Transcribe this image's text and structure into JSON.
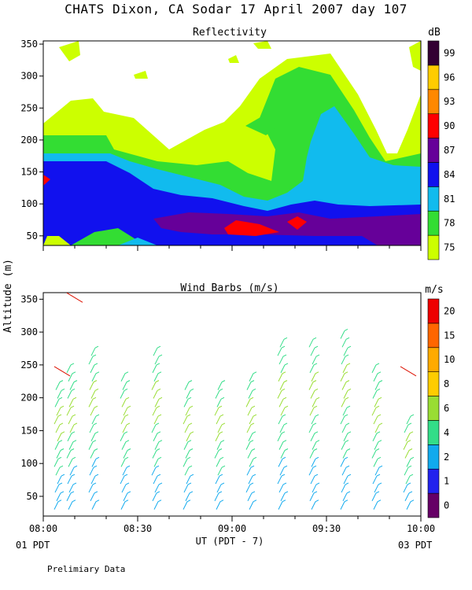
{
  "title": "CHATS Dixon, CA  Sodar  17 April 2007  day 107",
  "footer_note": "Prelimiary Data",
  "date_left": "01 PDT",
  "date_right": "03 PDT",
  "chart_data": [
    {
      "type": "heatmap",
      "title": "Reflectivity",
      "ylabel": "",
      "xlabel": "UT  (PDT - 7)",
      "xlim": [
        "08:00",
        "10:00"
      ],
      "ylim": [
        35,
        355
      ],
      "yticks": [
        50,
        100,
        150,
        200,
        250,
        300,
        350
      ],
      "xticks": [
        "08:00",
        "08:30",
        "09:00",
        "09:30",
        "10:00"
      ],
      "colorbar": {
        "unit": "dB",
        "levels": [
          {
            "label": "75",
            "color": "#ccff00"
          },
          {
            "label": "78",
            "color": "#33dd33"
          },
          {
            "label": "81",
            "color": "#11bbee"
          },
          {
            "label": "84",
            "color": "#1111ee"
          },
          {
            "label": "87",
            "color": "#660099"
          },
          {
            "label": "90",
            "color": "#ff0000"
          },
          {
            "label": "93",
            "color": "#ff8800"
          },
          {
            "label": "96",
            "color": "#ffcc00"
          },
          {
            "label": "99",
            "color": "#330033"
          }
        ]
      }
    },
    {
      "type": "scatter",
      "title": "Wind Barbs (m/s)",
      "ylabel": "Altitude (m)",
      "xlabel": "UT  (PDT - 7)",
      "xlim": [
        "08:00",
        "10:00"
      ],
      "ylim": [
        20,
        360
      ],
      "yticks": [
        50,
        100,
        150,
        200,
        250,
        300,
        350
      ],
      "xticks": [
        "08:00",
        "08:30",
        "09:00",
        "09:30",
        "10:00"
      ],
      "colorbar": {
        "unit": "m/s",
        "levels": [
          {
            "label": "0",
            "color": "#660066"
          },
          {
            "label": "1",
            "color": "#2222ee"
          },
          {
            "label": "2",
            "color": "#11aaee"
          },
          {
            "label": "4",
            "color": "#33dd88"
          },
          {
            "label": "6",
            "color": "#99dd33"
          },
          {
            "label": "8",
            "color": "#ffcc00"
          },
          {
            "label": "10",
            "color": "#ffaa00"
          },
          {
            "label": "15",
            "color": "#ff6600"
          },
          {
            "label": "20",
            "color": "#ee0000"
          }
        ]
      },
      "barb_columns": [
        {
          "time": "08:04",
          "tops": 220
        },
        {
          "time": "08:08",
          "tops": 240
        },
        {
          "time": "08:15",
          "tops": 275
        },
        {
          "time": "08:25",
          "tops": 230
        },
        {
          "time": "08:35",
          "tops": 270
        },
        {
          "time": "08:45",
          "tops": 215
        },
        {
          "time": "08:55",
          "tops": 215
        },
        {
          "time": "09:05",
          "tops": 235
        },
        {
          "time": "09:15",
          "tops": 280
        },
        {
          "time": "09:25",
          "tops": 280
        },
        {
          "time": "09:35",
          "tops": 300
        },
        {
          "time": "09:45",
          "tops": 240
        },
        {
          "time": "09:55",
          "tops": 165
        }
      ]
    }
  ]
}
